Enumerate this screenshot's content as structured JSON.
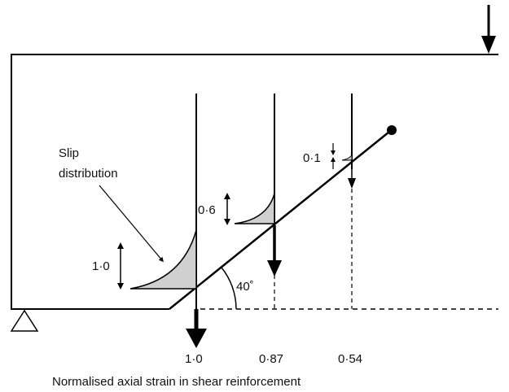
{
  "annotation": {
    "slip_line1": "Slip",
    "slip_line2": "distribution"
  },
  "slip_magnitudes": {
    "first": "1·0",
    "second": "0·6",
    "third": "0·1"
  },
  "angle_label": "40˚",
  "strain_values": {
    "first": "1·0",
    "second": "0·87",
    "third": "0·54"
  },
  "caption": "Normalised axial strain in shear reinforcement",
  "colors": {
    "stroke": "#000000",
    "fill": "#d0d0d0"
  }
}
